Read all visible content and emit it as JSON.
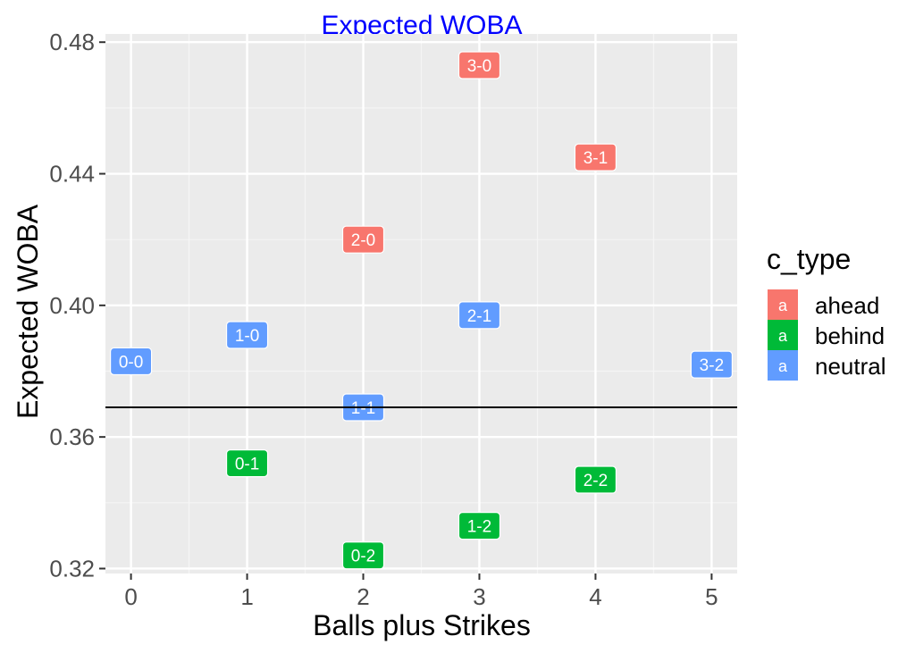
{
  "chart_data": {
    "type": "scatter",
    "title": "Expected WOBA",
    "xlabel": "Balls plus Strikes",
    "ylabel": "Expected WOBA",
    "xlim": [
      -0.22,
      5.22
    ],
    "ylim": [
      0.3185,
      0.4825
    ],
    "x_ticks": [
      0,
      1,
      2,
      3,
      4,
      5
    ],
    "x_tick_labels": [
      "0",
      "1",
      "2",
      "3",
      "4",
      "5"
    ],
    "y_ticks": [
      0.32,
      0.36,
      0.4,
      0.44,
      0.48
    ],
    "y_tick_labels": [
      "0.32",
      "0.36",
      "0.40",
      "0.44",
      "0.48"
    ],
    "grid": true,
    "reference_line": {
      "orientation": "horizontal",
      "y": 0.369
    },
    "legend": {
      "title": "c_type",
      "placement": "right",
      "key_glyph": "a",
      "entries": [
        {
          "name": "ahead",
          "color": "#F8766D"
        },
        {
          "name": "behind",
          "color": "#00BA38"
        },
        {
          "name": "neutral",
          "color": "#619CFF"
        }
      ]
    },
    "points": [
      {
        "label": "0-0",
        "x": 0,
        "y": 0.383,
        "group": "neutral"
      },
      {
        "label": "1-0",
        "x": 1,
        "y": 0.391,
        "group": "neutral"
      },
      {
        "label": "0-1",
        "x": 1,
        "y": 0.352,
        "group": "behind"
      },
      {
        "label": "2-0",
        "x": 2,
        "y": 0.42,
        "group": "ahead"
      },
      {
        "label": "1-1",
        "x": 2,
        "y": 0.369,
        "group": "neutral"
      },
      {
        "label": "0-2",
        "x": 2,
        "y": 0.324,
        "group": "behind"
      },
      {
        "label": "3-0",
        "x": 3,
        "y": 0.473,
        "group": "ahead"
      },
      {
        "label": "2-1",
        "x": 3,
        "y": 0.397,
        "group": "neutral"
      },
      {
        "label": "1-2",
        "x": 3,
        "y": 0.333,
        "group": "behind"
      },
      {
        "label": "3-1",
        "x": 4,
        "y": 0.445,
        "group": "ahead"
      },
      {
        "label": "2-2",
        "x": 4,
        "y": 0.347,
        "group": "behind"
      },
      {
        "label": "3-2",
        "x": 5,
        "y": 0.382,
        "group": "neutral"
      }
    ]
  },
  "colors": {
    "panel": "#EBEBEB",
    "grid_major": "#FFFFFF",
    "grid_minor": "#F5F5F5",
    "title": "#0000FF",
    "axis_text": "#4D4D4D",
    "axis_title": "#000000",
    "reference_line": "#000000"
  }
}
